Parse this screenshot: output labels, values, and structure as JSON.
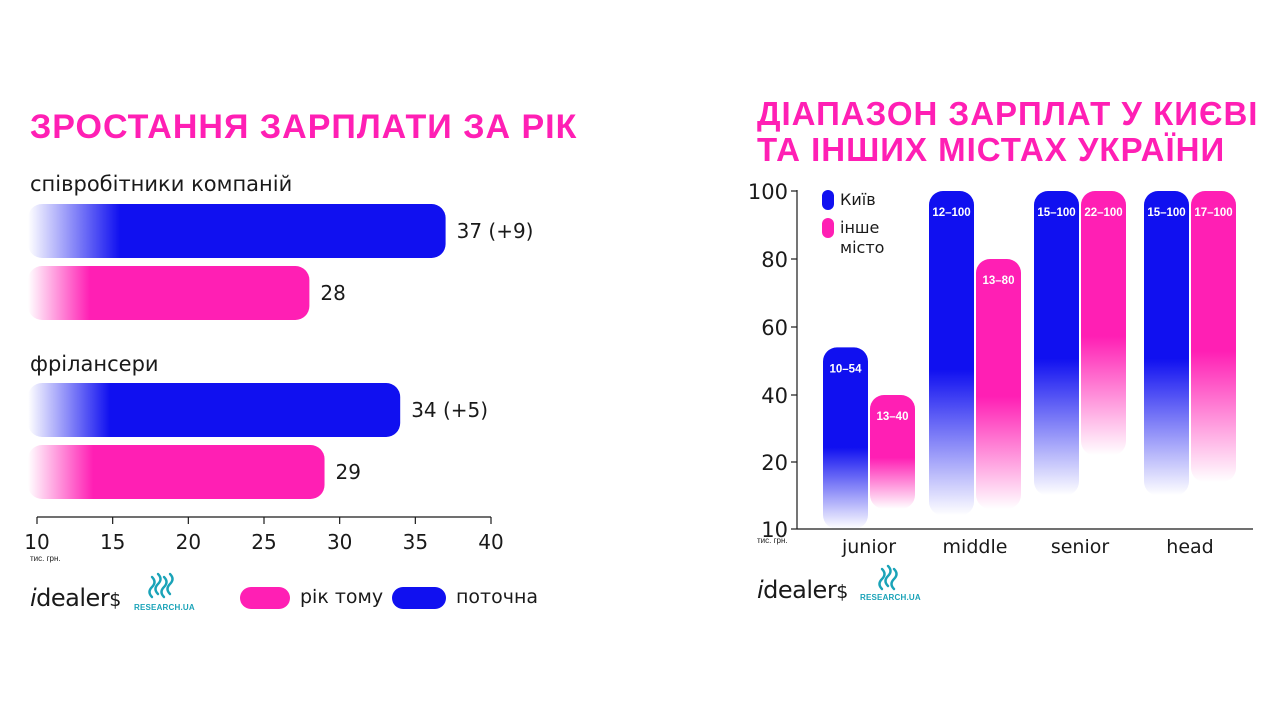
{
  "chart_data": [
    {
      "type": "bar",
      "orientation": "horizontal",
      "title": "ЗРОСТАННЯ ЗАРПЛАТИ ЗА РІК",
      "unit_label": "тис. грн.",
      "xlim": [
        10,
        40
      ],
      "x_ticks": [
        "10",
        "15",
        "20",
        "25",
        "30",
        "35",
        "40"
      ],
      "groups": [
        {
          "label": "співробітники компаній",
          "bars": [
            {
              "series": "поточна",
              "value": 37,
              "label": "37 (+9)"
            },
            {
              "series": "рік тому",
              "value": 28,
              "label": "28"
            }
          ]
        },
        {
          "label": "фрілансери",
          "bars": [
            {
              "series": "поточна",
              "value": 34,
              "label": "34 (+5)"
            },
            {
              "series": "рік тому",
              "value": 29,
              "label": "29"
            }
          ]
        }
      ],
      "legend": [
        {
          "name": "рік тому",
          "color": "#ff1fb4"
        },
        {
          "name": "поточна",
          "color": "#1010f0"
        }
      ]
    },
    {
      "type": "bar",
      "orientation": "vertical-range",
      "title_lines": [
        "ДІАПАЗОН ЗАРПЛАТ У КИЄВІ",
        "ТА ІНШИХ МІСТАХ УКРАЇНИ"
      ],
      "unit_label": "тис. грн.",
      "ylim": [
        10,
        100
      ],
      "y_ticks": [
        "10",
        "20",
        "40",
        "60",
        "80",
        "100"
      ],
      "y_tick_values": [
        10,
        20,
        40,
        60,
        80,
        100
      ],
      "categories": [
        "junior",
        "middle",
        "senior",
        "head"
      ],
      "series": [
        {
          "name": "Київ",
          "color": "#1010f0",
          "ranges": [
            [
              10,
              54
            ],
            [
              12,
              100
            ],
            [
              15,
              100
            ],
            [
              15,
              100
            ]
          ],
          "labels": [
            "10–54",
            "12–100",
            "15–100",
            "15–100"
          ]
        },
        {
          "name": "інше місто",
          "name_lines": [
            "інше",
            "місто"
          ],
          "color": "#ff1fb4",
          "ranges": [
            [
              13,
              40
            ],
            [
              13,
              80
            ],
            [
              22,
              100
            ],
            [
              17,
              100
            ]
          ],
          "labels": [
            "13–40",
            "13–80",
            "22–100",
            "17–100"
          ]
        }
      ]
    }
  ],
  "branding": {
    "logo_text": "idealer$",
    "logo_brand_text": "dealer",
    "logo_suffix": "$",
    "research_text": "RESEARCH.UA"
  },
  "colors": {
    "pink": "#ff1fb4",
    "blue": "#1010f0",
    "teal": "#1aa3b8"
  }
}
